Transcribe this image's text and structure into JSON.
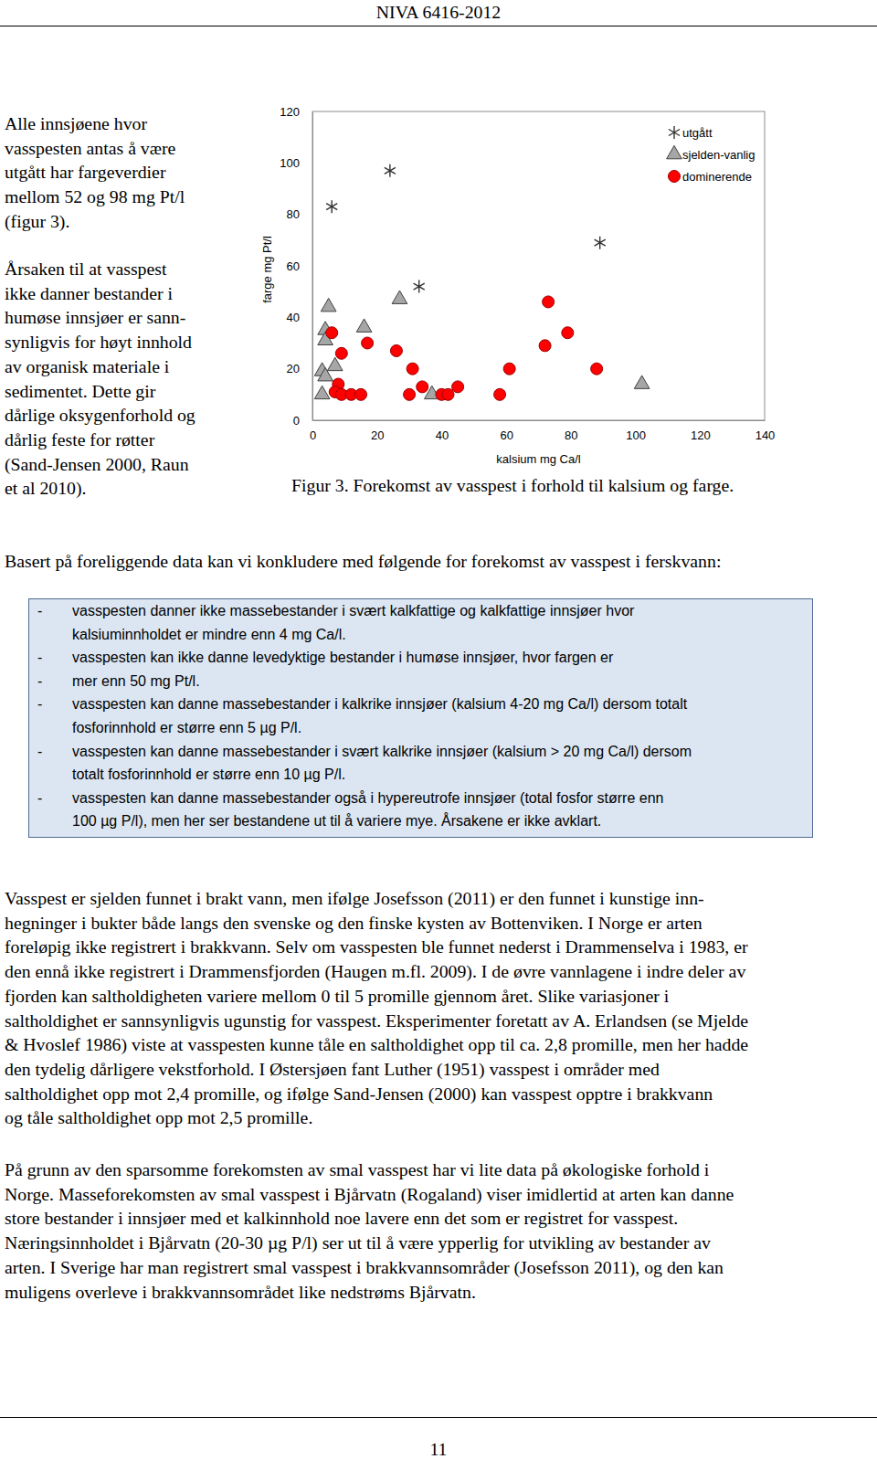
{
  "header": "NIVA 6416-2012",
  "left_text": [
    [
      "Alle innsjøene hvor",
      "vasspesten antas å være",
      "utgått har fargeverdier",
      "mellom 52 og 98 mg Pt/l",
      "(figur 3)."
    ],
    [
      "Årsaken til at vasspest",
      "ikke danner bestander i",
      "humøse innsjøer er sann-",
      "synligvis for høyt innhold",
      "av organisk materiale i",
      "sedimentet. Dette gir",
      "dårlige oksygenforhold og",
      "dårlig feste for røtter",
      "(Sand-Jensen 2000, Raun",
      "et al 2010)."
    ]
  ],
  "chart_data": {
    "type": "scatter",
    "xlabel": "kalsium mg Ca/l",
    "ylabel": "farge mg Pt/l",
    "xlim": [
      0,
      140
    ],
    "xticks": [
      0,
      20,
      40,
      60,
      80,
      100,
      120,
      140
    ],
    "ylim": [
      0,
      120
    ],
    "yticks": [
      0,
      20,
      40,
      60,
      80,
      100,
      120
    ],
    "grid": false,
    "legend": "top-right",
    "series": [
      {
        "name": "utgått",
        "color": "#333333",
        "marker": "asterisk",
        "x": [
          6,
          24,
          33,
          89
        ],
        "values": [
          83,
          97,
          52,
          69
        ]
      },
      {
        "name": "sjelden-vanlig",
        "color": "#a6a6a6",
        "marker": "triangle",
        "x": [
          5,
          4,
          4,
          7,
          3,
          4,
          3,
          16,
          27,
          37,
          102
        ],
        "values": [
          44,
          35,
          31,
          21,
          19,
          17,
          10,
          36,
          47,
          10,
          14
        ]
      },
      {
        "name": "dominerende",
        "color": "#ff0000",
        "marker": "circle",
        "x": [
          6,
          9,
          8,
          7,
          9,
          12,
          15,
          17,
          26,
          31,
          30,
          34,
          40,
          42,
          45,
          58,
          61,
          73,
          72,
          79,
          88
        ],
        "values": [
          34,
          26,
          14,
          11,
          10,
          10,
          10,
          30,
          27,
          20,
          10,
          13,
          10,
          10,
          13,
          10,
          20,
          46,
          29,
          34,
          20
        ]
      }
    ]
  },
  "caption": "Figur 3. Forekomst av vasspest i forhold til kalsium og farge.",
  "intro": "Basert på foreliggende data kan vi konkludere med følgende for forekomst av vasspest i ferskvann:",
  "box": {
    "bullet": "-",
    "items": [
      [
        "vasspesten danner ikke massebestander i svært kalkfattige og kalkfattige innsjøer hvor",
        "kalsiuminnholdet er mindre enn 4 mg Ca/l."
      ],
      [
        "vasspesten kan ikke danne levedyktige bestander i humøse innsjøer, hvor fargen er"
      ],
      [
        "mer enn 50 mg Pt/l."
      ],
      [
        "vasspesten kan danne massebestander i kalkrike innsjøer (kalsium 4-20 mg Ca/l) dersom totalt",
        "fosforinnhold er større enn 5 µg P/l."
      ],
      [
        "vasspesten kan danne massebestander i svært kalkrike innsjøer (kalsium > 20 mg Ca/l) dersom",
        "totalt fosforinnhold er større enn 10 µg P/l."
      ],
      [
        "vasspesten kan danne massebestander også i hypereutrofe innsjøer (total fosfor større enn",
        "100 µg P/l), men her ser bestandene ut til å variere mye. Årsakene er ikke avklart."
      ]
    ]
  },
  "paragraphs": [
    [
      "Vasspest er sjelden funnet i brakt vann, men ifølge Josefsson (2011) er den funnet i kunstige inn-",
      "hegninger i bukter både langs den svenske og den finske kysten av Bottenviken. I Norge er arten",
      "foreløpig ikke registrert i brakkvann. Selv om vasspesten ble funnet nederst i Drammenselva i 1983, er",
      "den ennå ikke registrert i Drammensfjorden (Haugen m.fl. 2009). I de øvre vannlagene i indre deler av",
      "fjorden kan saltholdigheten variere mellom 0 til 5 promille gjennom året. Slike variasjoner i",
      "saltholdighet er sannsynligvis ugunstig for vasspest. Eksperimenter foretatt av A. Erlandsen (se Mjelde",
      "& Hvoslef 1986) viste at vasspesten kunne tåle en saltholdighet opp til ca. 2,8 promille, men her hadde",
      "den tydelig dårligere vekstforhold. I Østersjøen fant Luther (1951) vasspest i områder med",
      "saltholdighet opp mot 2,4 promille, og ifølge Sand-Jensen (2000) kan vasspest opptre i brakkvann",
      "og tåle saltholdighet opp mot 2,5 promille."
    ],
    [
      "På grunn av den sparsomme forekomsten av smal vasspest har vi lite data på økologiske forhold i",
      "Norge. Masseforekomsten av smal vasspest i Bjårvatn (Rogaland) viser imidlertid at arten kan danne",
      "store bestander i innsjøer med et kalkinnhold noe lavere enn det som er registret for vasspest.",
      "Næringsinnholdet i Bjårvatn (20-30 µg P/l) ser ut til å være ypperlig for utvikling av bestander av",
      "arten. I Sverige har man registrert smal vasspest i brakkvannsområder (Josefsson 2011), og den kan",
      "muligens overleve i brakkvannsområdet like nedstrøms Bjårvatn."
    ]
  ],
  "page_number": "11"
}
